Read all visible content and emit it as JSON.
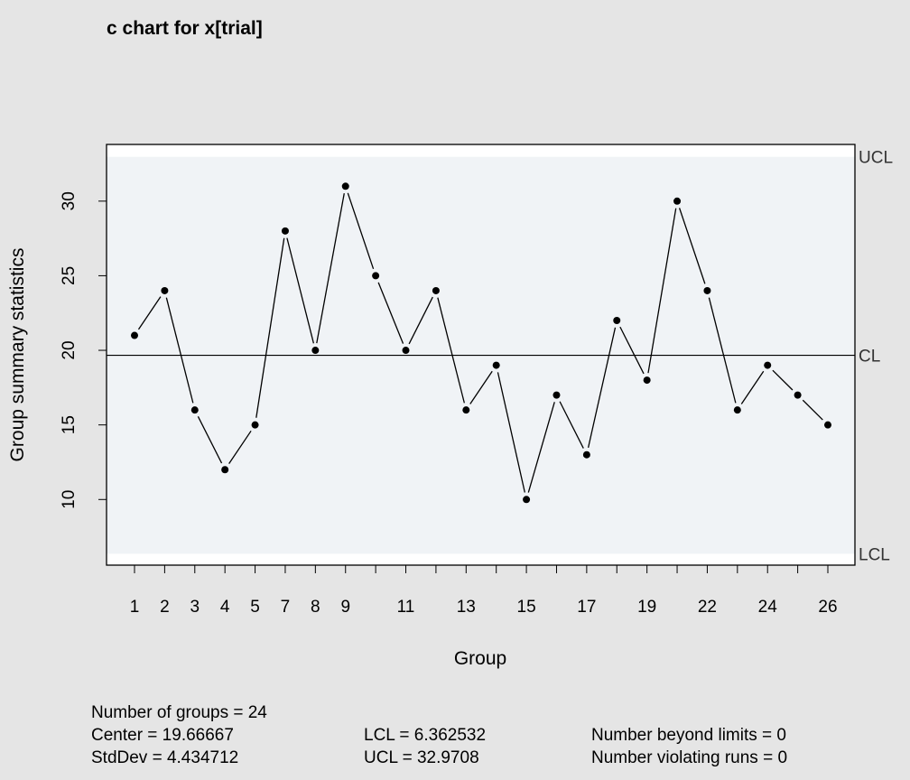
{
  "chart_data": {
    "type": "line",
    "title": "c chart for x[trial]",
    "xlabel": "Group",
    "ylabel": "Group summary statistics",
    "x": [
      1,
      2,
      3,
      4,
      5,
      7,
      8,
      9,
      10,
      11,
      12,
      13,
      14,
      15,
      16,
      17,
      18,
      19,
      20,
      22,
      23,
      24,
      25,
      26
    ],
    "values": [
      21,
      24,
      16,
      12,
      15,
      28,
      20,
      31,
      25,
      20,
      24,
      16,
      19,
      10,
      17,
      13,
      22,
      18,
      30,
      24,
      16,
      19,
      17,
      15
    ],
    "x_tick_labels": [
      "1",
      "2",
      "3",
      "4",
      "5",
      "7",
      "8",
      "9",
      "11",
      "13",
      "15",
      "17",
      "19",
      "22",
      "24",
      "26"
    ],
    "x_tick_marks": [
      1,
      2,
      3,
      4,
      5,
      7,
      8,
      9,
      10,
      11,
      12,
      13,
      14,
      15,
      16,
      17,
      18,
      19,
      20,
      22,
      23,
      24,
      25,
      26
    ],
    "y_ticks": [
      10,
      15,
      20,
      25,
      30
    ],
    "ylim": [
      5.6,
      33.8
    ],
    "center_line": {
      "label": "CL",
      "value": 19.66667
    },
    "ucl": {
      "label": "UCL",
      "value": 32.9708
    },
    "lcl": {
      "label": "LCL",
      "value": 6.362532
    },
    "colors": {
      "background": "#e5e5e5",
      "plot_area": "#ffffff",
      "in_control_band": "#f0f3f6",
      "line": "#000000"
    }
  },
  "stats": {
    "groups": "Number of groups = 24",
    "center": "Center = 19.66667",
    "stddev": "StdDev = 4.434712",
    "lcl": "LCL = 6.362532",
    "ucl": "UCL = 32.9708",
    "beyond": "Number beyond limits = 0",
    "violating": "Number violating runs = 0"
  }
}
